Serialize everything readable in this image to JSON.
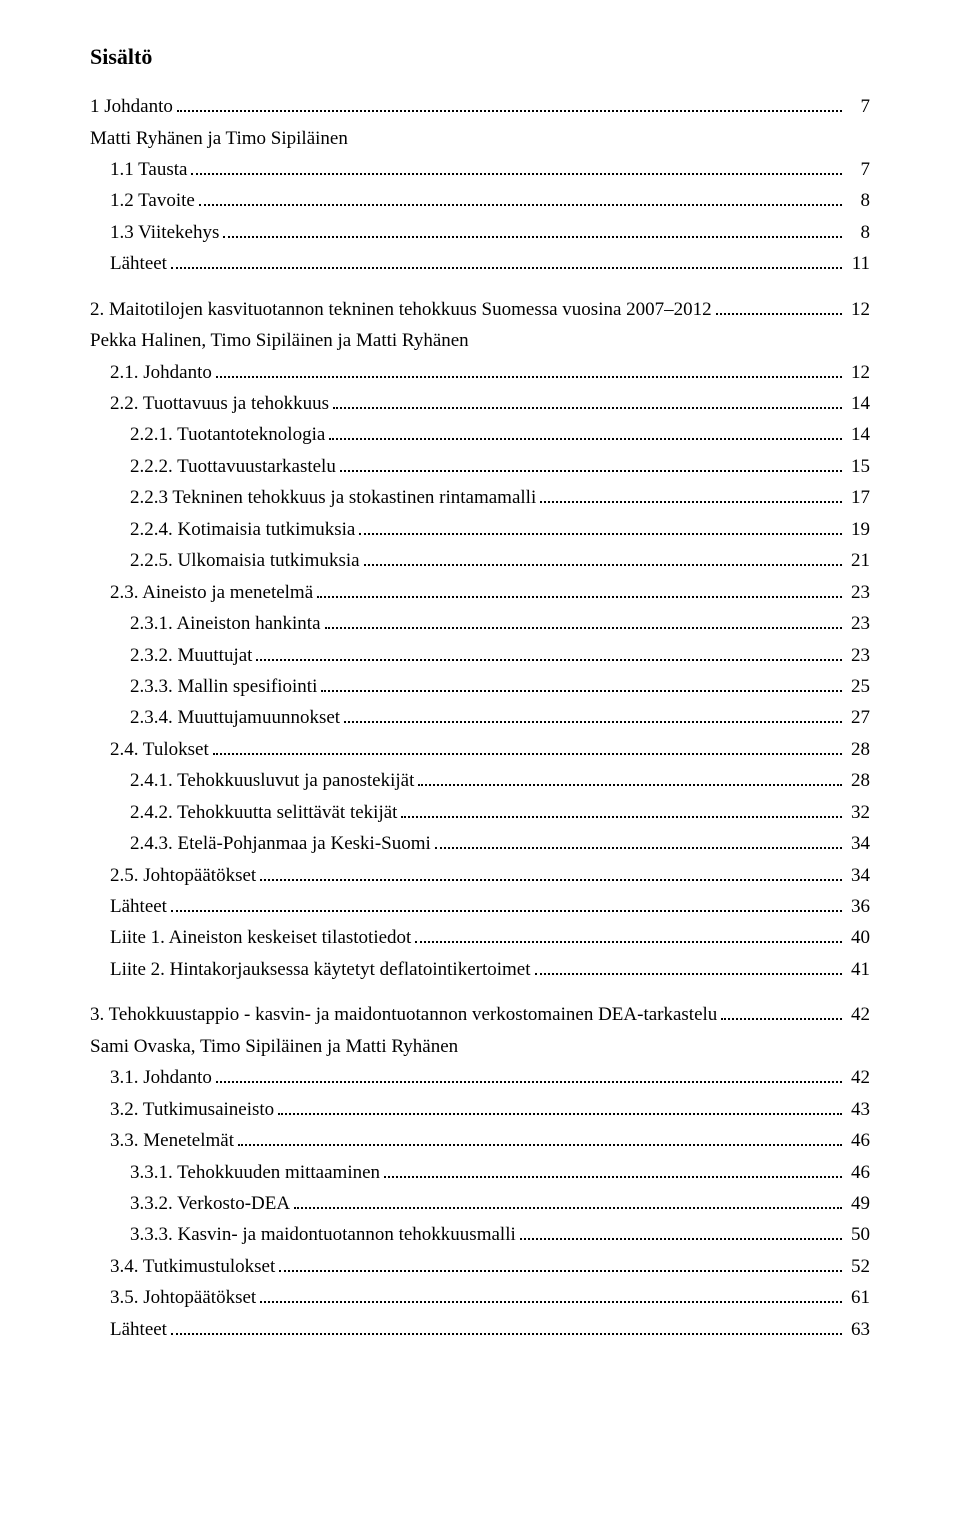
{
  "title": "Sisältö",
  "entries": [
    {
      "type": "toc",
      "indent": 0,
      "text": "1 Johdanto",
      "page": "7"
    },
    {
      "type": "author",
      "indent": 0,
      "text": "Matti Ryhänen ja Timo Sipiläinen"
    },
    {
      "type": "toc",
      "indent": 1,
      "text": "1.1 Tausta",
      "page": "7"
    },
    {
      "type": "toc",
      "indent": 1,
      "text": "1.2 Tavoite",
      "page": "8"
    },
    {
      "type": "toc",
      "indent": 1,
      "text": "1.3 Viitekehys",
      "page": "8"
    },
    {
      "type": "toc",
      "indent": 1,
      "text": "Lähteet",
      "page": "11"
    },
    {
      "type": "gap"
    },
    {
      "type": "toc",
      "indent": 0,
      "text": "2. Maitotilojen kasvituotannon tekninen tehokkuus Suomessa vuosina 2007–2012",
      "page": "12"
    },
    {
      "type": "author",
      "indent": 0,
      "text": "Pekka Halinen, Timo Sipiläinen ja Matti Ryhänen"
    },
    {
      "type": "toc",
      "indent": 1,
      "text": "2.1. Johdanto",
      "page": "12"
    },
    {
      "type": "toc",
      "indent": 1,
      "text": "2.2. Tuottavuus ja tehokkuus",
      "page": "14"
    },
    {
      "type": "toc",
      "indent": 2,
      "text": "2.2.1. Tuotantoteknologia",
      "page": "14"
    },
    {
      "type": "toc",
      "indent": 2,
      "text": "2.2.2. Tuottavuustarkastelu",
      "page": "15"
    },
    {
      "type": "toc",
      "indent": 2,
      "text": "2.2.3 Tekninen tehokkuus ja stokastinen rintamamalli",
      "page": "17"
    },
    {
      "type": "toc",
      "indent": 2,
      "text": "2.2.4. Kotimaisia tutkimuksia",
      "page": "19"
    },
    {
      "type": "toc",
      "indent": 2,
      "text": "2.2.5. Ulkomaisia tutkimuksia",
      "page": "21"
    },
    {
      "type": "toc",
      "indent": 1,
      "text": "2.3. Aineisto ja menetelmä",
      "page": "23"
    },
    {
      "type": "toc",
      "indent": 2,
      "text": "2.3.1. Aineiston hankinta",
      "page": "23"
    },
    {
      "type": "toc",
      "indent": 2,
      "text": "2.3.2. Muuttujat",
      "page": "23"
    },
    {
      "type": "toc",
      "indent": 2,
      "text": "2.3.3. Mallin spesifiointi",
      "page": "25"
    },
    {
      "type": "toc",
      "indent": 2,
      "text": "2.3.4. Muuttujamuunnokset",
      "page": "27"
    },
    {
      "type": "toc",
      "indent": 1,
      "text": "2.4. Tulokset",
      "page": "28"
    },
    {
      "type": "toc",
      "indent": 2,
      "text": "2.4.1. Tehokkuusluvut ja panostekijät",
      "page": "28"
    },
    {
      "type": "toc",
      "indent": 2,
      "text": "2.4.2. Tehokkuutta selittävät tekijät",
      "page": "32"
    },
    {
      "type": "toc",
      "indent": 2,
      "text": "2.4.3. Etelä-Pohjanmaa ja Keski-Suomi",
      "page": "34"
    },
    {
      "type": "toc",
      "indent": 1,
      "text": "2.5. Johtopäätökset",
      "page": "34"
    },
    {
      "type": "toc",
      "indent": 1,
      "text": "Lähteet",
      "page": "36"
    },
    {
      "type": "toc",
      "indent": 1,
      "text": "Liite 1. Aineiston keskeiset tilastotiedot",
      "page": "40"
    },
    {
      "type": "toc",
      "indent": 1,
      "text": "Liite 2. Hintakorjauksessa käytetyt deflatointikertoimet",
      "page": "41"
    },
    {
      "type": "gap"
    },
    {
      "type": "toc",
      "indent": 0,
      "text": "3. Tehokkuustappio - kasvin- ja maidontuotannon verkostomainen DEA-tarkastelu",
      "page": "42"
    },
    {
      "type": "author",
      "indent": 0,
      "text": "Sami Ovaska, Timo Sipiläinen ja Matti Ryhänen"
    },
    {
      "type": "toc",
      "indent": 1,
      "text": "3.1. Johdanto",
      "page": "42"
    },
    {
      "type": "toc",
      "indent": 1,
      "text": "3.2. Tutkimusaineisto",
      "page": "43"
    },
    {
      "type": "toc",
      "indent": 1,
      "text": "3.3. Menetelmät",
      "page": "46"
    },
    {
      "type": "toc",
      "indent": 2,
      "text": "3.3.1. Tehokkuuden mittaaminen",
      "page": "46"
    },
    {
      "type": "toc",
      "indent": 2,
      "text": "3.3.2. Verkosto-DEA",
      "page": "49"
    },
    {
      "type": "toc",
      "indent": 2,
      "text": "3.3.3. Kasvin- ja maidontuotannon tehokkuusmalli",
      "page": "50"
    },
    {
      "type": "toc",
      "indent": 1,
      "text": "3.4. Tutkimustulokset",
      "page": "52"
    },
    {
      "type": "toc",
      "indent": 1,
      "text": "3.5. Johtopäätökset",
      "page": "61"
    },
    {
      "type": "toc",
      "indent": 1,
      "text": "Lähteet",
      "page": "63"
    }
  ]
}
